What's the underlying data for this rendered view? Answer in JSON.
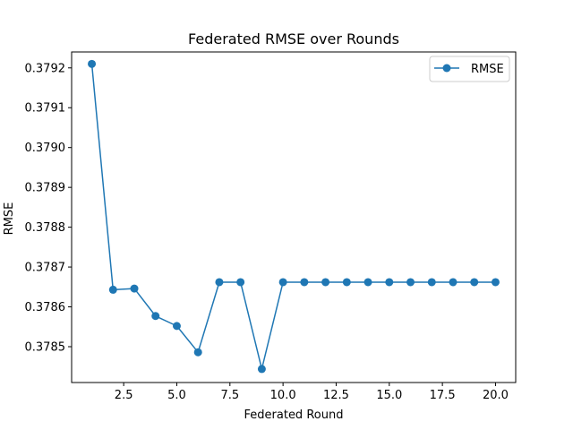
{
  "chart_data": {
    "type": "line",
    "title": "Federated RMSE over Rounds",
    "xlabel": "Federated Round",
    "ylabel": "RMSE",
    "xlim": [
      0.05,
      20.95
    ],
    "ylim": [
      0.37841,
      0.37924
    ],
    "xticks": [
      2.5,
      5.0,
      7.5,
      10.0,
      12.5,
      15.0,
      17.5,
      20.0
    ],
    "xtick_labels": [
      "2.5",
      "5.0",
      "7.5",
      "10.0",
      "12.5",
      "15.0",
      "17.5",
      "20.0"
    ],
    "yticks": [
      0.3785,
      0.3786,
      0.3787,
      0.3788,
      0.3789,
      0.379,
      0.3791,
      0.3792
    ],
    "ytick_labels": [
      "0.3785",
      "0.3786",
      "0.3787",
      "0.3788",
      "0.3789",
      "0.3790",
      "0.3791",
      "0.3792"
    ],
    "grid": false,
    "legend_position": "top-right",
    "series": [
      {
        "name": "RMSE",
        "color": "#1f77b4",
        "marker": "circle",
        "x": [
          1,
          2,
          3,
          4,
          5,
          6,
          7,
          8,
          9,
          10,
          11,
          12,
          13,
          14,
          15,
          16,
          17,
          18,
          19,
          20
        ],
        "y": [
          0.37921,
          0.378643,
          0.378646,
          0.378577,
          0.378552,
          0.378486,
          0.378662,
          0.378662,
          0.378444,
          0.378662,
          0.378662,
          0.378662,
          0.378662,
          0.378662,
          0.378662,
          0.378662,
          0.378662,
          0.378662,
          0.378662,
          0.378662
        ]
      }
    ]
  }
}
